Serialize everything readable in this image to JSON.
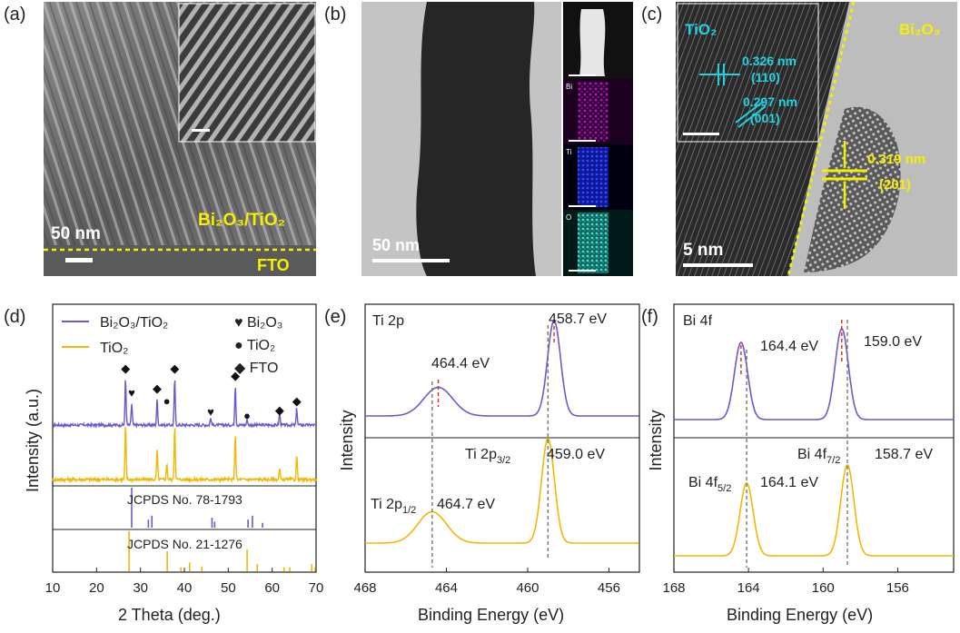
{
  "figure": {
    "panel_letters": [
      "(a)",
      "(b)",
      "(c)",
      "(d)",
      "(e)",
      "(f)"
    ]
  },
  "panel_a": {
    "scale_bar": "50 nm",
    "material": "Bi₂O₃/TiO₂",
    "substrate": "FTO"
  },
  "panel_b": {
    "scale_bar": "50 nm",
    "eds_maps": [
      {
        "element": "",
        "color": "#e8e8e8"
      },
      {
        "element": "Bi",
        "color": "#b100b5"
      },
      {
        "element": "Ti",
        "color": "#1f2bd6"
      },
      {
        "element": "O",
        "color": "#2fc2b3"
      }
    ]
  },
  "panel_c": {
    "label_left": "TiO₂",
    "label_right": "Bi₂O₃",
    "scale_bar": "5 nm",
    "d_spacings": [
      {
        "value": "0.326 nm",
        "plane": "(110)",
        "color": "#20d4e6"
      },
      {
        "value": "0.297 nm",
        "plane": "(001)",
        "color": "#20d4e6"
      },
      {
        "value": "0.319 nm",
        "plane": "(201)",
        "color": "#f5f000"
      }
    ]
  },
  "chart_data": [
    {
      "panel": "(d)",
      "type": "line",
      "xlabel": "2 Theta (deg.)",
      "ylabel": "Intensity (a.u.)",
      "xlim": [
        10,
        70
      ],
      "xticks": [
        10,
        20,
        30,
        40,
        50,
        60,
        70
      ],
      "series": [
        {
          "name": "Bi₂O₃/TiO₂",
          "color": "#6a5acd",
          "peaks": [
            [
              26.6,
              1.0
            ],
            [
              28.0,
              0.45
            ],
            [
              33.8,
              0.55
            ],
            [
              37.8,
              1.0
            ],
            [
              46.0,
              0.15
            ],
            [
              51.6,
              0.85
            ],
            [
              54.3,
              0.12
            ],
            [
              61.7,
              0.25
            ],
            [
              65.6,
              0.35
            ]
          ]
        },
        {
          "name": "TiO₂",
          "color": "#f2b705",
          "peaks": [
            [
              26.6,
              1.0
            ],
            [
              33.8,
              0.55
            ],
            [
              36.0,
              0.3
            ],
            [
              37.8,
              1.0
            ],
            [
              51.6,
              0.85
            ],
            [
              61.7,
              0.2
            ],
            [
              65.6,
              0.45
            ]
          ]
        }
      ],
      "legend": [
        "♥ Bi₂O₃",
        "● TiO₂",
        "◆ FTO"
      ],
      "references": [
        {
          "name": "JCPDS No. 78-1793",
          "color": "#6a5acd",
          "lines": [
            [
              28.0,
              1.0
            ],
            [
              31.8,
              0.2
            ],
            [
              32.6,
              0.3
            ],
            [
              46.3,
              0.25
            ],
            [
              46.9,
              0.15
            ],
            [
              54.5,
              0.2
            ],
            [
              55.5,
              0.3
            ],
            [
              57.8,
              0.12
            ]
          ]
        },
        {
          "name": "JCPDS No. 21-1276",
          "color": "#f2b705",
          "lines": [
            [
              27.4,
              1.0
            ],
            [
              36.1,
              0.5
            ],
            [
              39.2,
              0.1
            ],
            [
              41.2,
              0.22
            ],
            [
              44.0,
              0.12
            ],
            [
              54.3,
              0.55
            ],
            [
              56.6,
              0.18
            ],
            [
              62.7,
              0.1
            ],
            [
              64.0,
              0.1
            ],
            [
              69.0,
              0.18
            ],
            [
              69.8,
              0.1
            ]
          ]
        }
      ]
    },
    {
      "panel": "(e)",
      "type": "line",
      "title": "Ti 2p",
      "xlabel": "Binding Energy (eV)",
      "ylabel": "Intensity",
      "xlim": [
        468,
        454.5
      ],
      "xticks": [
        468,
        464,
        460,
        456
      ],
      "series": [
        {
          "name": "Bi₂O₃/TiO₂",
          "color": "#6a5acd",
          "peaks": [
            {
              "center": 464.4,
              "height": 0.3,
              "width": 1.0
            },
            {
              "center": 458.7,
              "height": 1.0,
              "width": 0.45
            }
          ]
        },
        {
          "name": "TiO₂",
          "color": "#f2b705",
          "peaks": [
            {
              "center": 464.7,
              "height": 0.3,
              "width": 1.0
            },
            {
              "center": 459.0,
              "height": 1.0,
              "width": 0.45
            }
          ]
        }
      ],
      "annotations_top": [
        "464.4 eV",
        "458.7 eV"
      ],
      "annotations_bottom": {
        "left_label": "Ti 2p",
        "left_sub": "1/2",
        "left_value": "464.7 eV",
        "right_label": "Ti 2p",
        "right_sub": "3/2",
        "right_value": "459.0 eV"
      }
    },
    {
      "panel": "(f)",
      "type": "line",
      "title": "Bi 4f",
      "xlabel": "Binding Energy (eV)",
      "ylabel": "Intensity",
      "xlim": [
        168,
        153
      ],
      "xticks": [
        168,
        164,
        160,
        156
      ],
      "series": [
        {
          "name": "Bi₂O₃/TiO₂",
          "color": "#6a5acd",
          "peaks": [
            {
              "center": 164.4,
              "height": 0.85,
              "width": 0.5
            },
            {
              "center": 159.0,
              "height": 1.0,
              "width": 0.5
            }
          ]
        },
        {
          "name": "TiO₂",
          "color": "#f2b705",
          "peaks": [
            {
              "center": 164.1,
              "height": 0.8,
              "width": 0.5
            },
            {
              "center": 158.7,
              "height": 1.0,
              "width": 0.5
            }
          ]
        }
      ],
      "annotations_top": [
        "164.4 eV",
        "159.0 eV"
      ],
      "annotations_bottom": {
        "left_label": "Bi 4f",
        "left_sub": "5/2",
        "left_value": "164.1 eV",
        "right_label": "Bi 4f",
        "right_sub": "7/2",
        "right_value": "158.7 eV"
      }
    }
  ]
}
